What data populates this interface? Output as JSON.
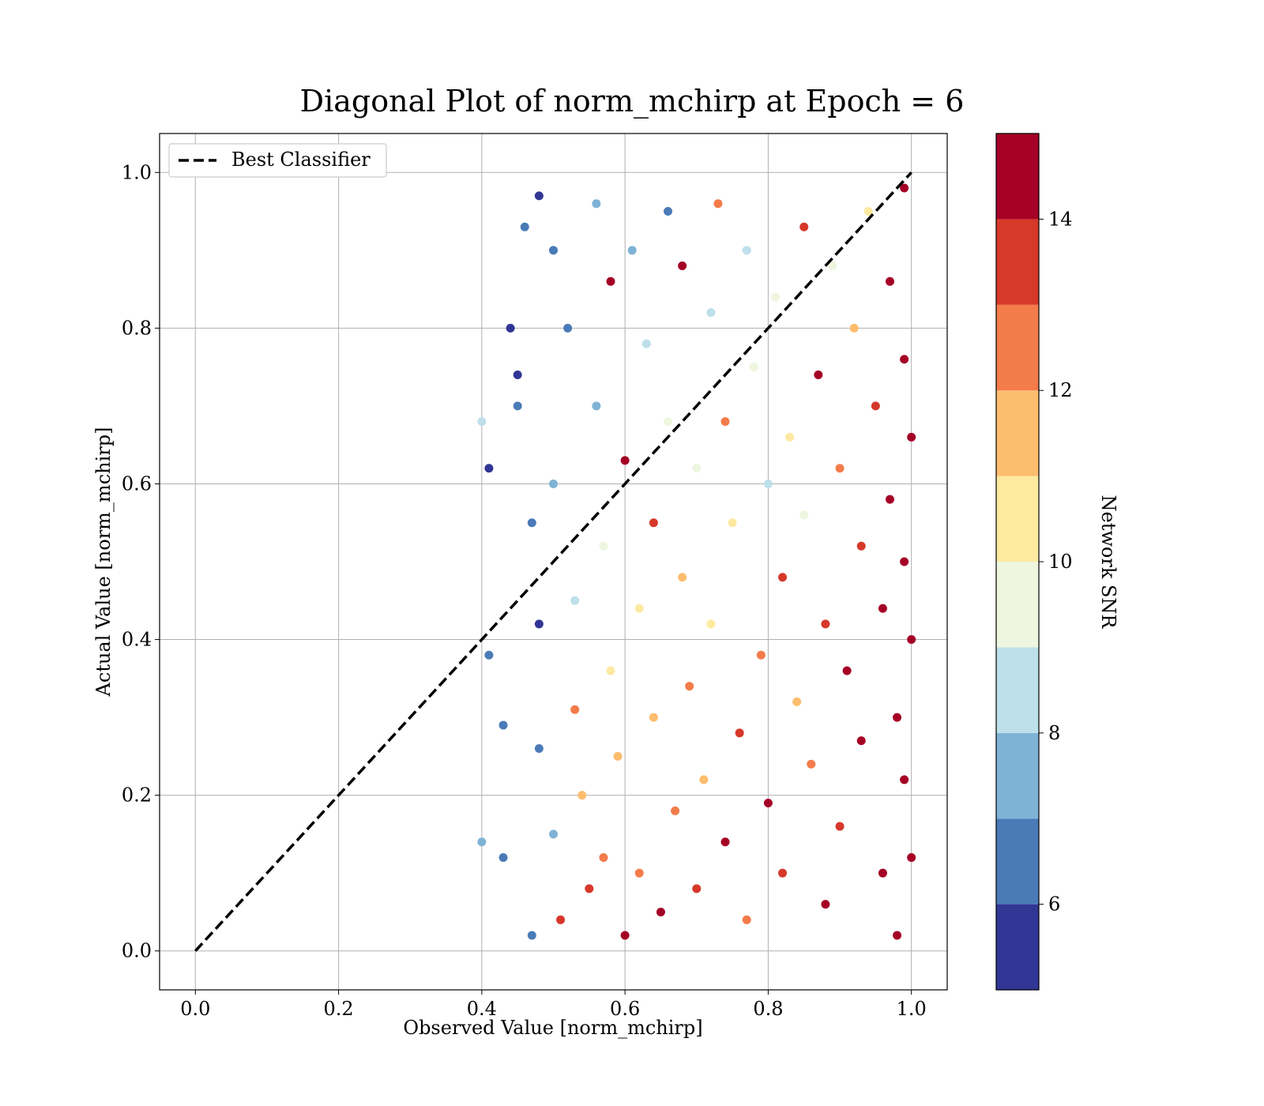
{
  "chart_data": {
    "type": "scatter",
    "title": "Diagonal Plot of norm_mchirp at Epoch = 6",
    "xlabel": "Observed Value [norm_mchirp]",
    "ylabel": "Actual Value [norm_mchirp]",
    "xlim": [
      -0.05,
      1.05
    ],
    "ylim": [
      -0.05,
      1.05
    ],
    "x_ticks": [
      0.0,
      0.2,
      0.4,
      0.6,
      0.8,
      1.0
    ],
    "y_ticks": [
      0.0,
      0.2,
      0.4,
      0.6,
      0.8,
      1.0
    ],
    "x_tick_labels": [
      "0.0",
      "0.2",
      "0.4",
      "0.6",
      "0.8",
      "1.0"
    ],
    "y_tick_labels": [
      "0.0",
      "0.2",
      "0.4",
      "0.6",
      "0.8",
      "1.0"
    ],
    "grid": true,
    "legend": {
      "placement": "upper-left",
      "entries": [
        {
          "label": "Best Classifier",
          "style": "black dashed line"
        }
      ]
    },
    "reference_line": {
      "name": "Best Classifier",
      "x": [
        0.0,
        1.0
      ],
      "y": [
        0.0,
        1.0
      ],
      "color": "#000000",
      "style": "dashed"
    },
    "colorbar": {
      "label": "Network SNR",
      "range": [
        5,
        15
      ],
      "ticks": [
        6,
        8,
        10,
        12,
        14
      ],
      "tick_labels": [
        "6",
        "8",
        "10",
        "12",
        "14"
      ],
      "bins": [
        {
          "from": 5,
          "to": 6,
          "color": "#313695"
        },
        {
          "from": 6,
          "to": 7,
          "color": "#4a7bb7"
        },
        {
          "from": 7,
          "to": 8,
          "color": "#7fb3d5"
        },
        {
          "from": 8,
          "to": 9,
          "color": "#bde0eb"
        },
        {
          "from": 9,
          "to": 10,
          "color": "#eef6df"
        },
        {
          "from": 10,
          "to": 11,
          "color": "#fde9a0"
        },
        {
          "from": 11,
          "to": 12,
          "color": "#fdbd6e"
        },
        {
          "from": 12,
          "to": 13,
          "color": "#f47b4a"
        },
        {
          "from": 13,
          "to": 14,
          "color": "#d6382a"
        },
        {
          "from": 14,
          "to": 15,
          "color": "#a50026"
        }
      ]
    },
    "series": [
      {
        "type": "scatter",
        "color_by": "Network SNR",
        "points": [
          {
            "x": 0.4,
            "y": 0.14,
            "snr": 7
          },
          {
            "x": 0.4,
            "y": 0.68,
            "snr": 8
          },
          {
            "x": 0.41,
            "y": 0.62,
            "snr": 5
          },
          {
            "x": 0.41,
            "y": 0.38,
            "snr": 6
          },
          {
            "x": 0.43,
            "y": 0.29,
            "snr": 6
          },
          {
            "x": 0.43,
            "y": 0.12,
            "snr": 6
          },
          {
            "x": 0.44,
            "y": 0.8,
            "snr": 5
          },
          {
            "x": 0.45,
            "y": 0.74,
            "snr": 5
          },
          {
            "x": 0.45,
            "y": 0.7,
            "snr": 6
          },
          {
            "x": 0.46,
            "y": 0.93,
            "snr": 6
          },
          {
            "x": 0.47,
            "y": 0.55,
            "snr": 6
          },
          {
            "x": 0.47,
            "y": 0.02,
            "snr": 6
          },
          {
            "x": 0.48,
            "y": 0.97,
            "snr": 5
          },
          {
            "x": 0.48,
            "y": 0.42,
            "snr": 5
          },
          {
            "x": 0.48,
            "y": 0.26,
            "snr": 6
          },
          {
            "x": 0.5,
            "y": 0.9,
            "snr": 6
          },
          {
            "x": 0.5,
            "y": 0.6,
            "snr": 7
          },
          {
            "x": 0.5,
            "y": 0.15,
            "snr": 7
          },
          {
            "x": 0.51,
            "y": 0.04,
            "snr": 13
          },
          {
            "x": 0.52,
            "y": 0.8,
            "snr": 6
          },
          {
            "x": 0.53,
            "y": 0.45,
            "snr": 8
          },
          {
            "x": 0.53,
            "y": 0.31,
            "snr": 12
          },
          {
            "x": 0.54,
            "y": 0.2,
            "snr": 11
          },
          {
            "x": 0.55,
            "y": 0.08,
            "snr": 13
          },
          {
            "x": 0.56,
            "y": 0.96,
            "snr": 7
          },
          {
            "x": 0.56,
            "y": 0.7,
            "snr": 7
          },
          {
            "x": 0.57,
            "y": 0.52,
            "snr": 9
          },
          {
            "x": 0.57,
            "y": 0.12,
            "snr": 12
          },
          {
            "x": 0.58,
            "y": 0.86,
            "snr": 14
          },
          {
            "x": 0.58,
            "y": 0.36,
            "snr": 10
          },
          {
            "x": 0.59,
            "y": 0.25,
            "snr": 11
          },
          {
            "x": 0.6,
            "y": 0.63,
            "snr": 14
          },
          {
            "x": 0.6,
            "y": 0.02,
            "snr": 14
          },
          {
            "x": 0.61,
            "y": 0.9,
            "snr": 7
          },
          {
            "x": 0.62,
            "y": 0.44,
            "snr": 10
          },
          {
            "x": 0.62,
            "y": 0.1,
            "snr": 12
          },
          {
            "x": 0.63,
            "y": 0.78,
            "snr": 8
          },
          {
            "x": 0.64,
            "y": 0.55,
            "snr": 13
          },
          {
            "x": 0.64,
            "y": 0.3,
            "snr": 11
          },
          {
            "x": 0.65,
            "y": 0.05,
            "snr": 14
          },
          {
            "x": 0.66,
            "y": 0.95,
            "snr": 6
          },
          {
            "x": 0.66,
            "y": 0.68,
            "snr": 9
          },
          {
            "x": 0.67,
            "y": 0.18,
            "snr": 12
          },
          {
            "x": 0.68,
            "y": 0.48,
            "snr": 11
          },
          {
            "x": 0.68,
            "y": 0.88,
            "snr": 14
          },
          {
            "x": 0.69,
            "y": 0.34,
            "snr": 12
          },
          {
            "x": 0.7,
            "y": 0.62,
            "snr": 9
          },
          {
            "x": 0.7,
            "y": 0.08,
            "snr": 13
          },
          {
            "x": 0.71,
            "y": 0.22,
            "snr": 11
          },
          {
            "x": 0.72,
            "y": 0.82,
            "snr": 8
          },
          {
            "x": 0.72,
            "y": 0.42,
            "snr": 10
          },
          {
            "x": 0.73,
            "y": 0.96,
            "snr": 12
          },
          {
            "x": 0.74,
            "y": 0.68,
            "snr": 12
          },
          {
            "x": 0.74,
            "y": 0.14,
            "snr": 14
          },
          {
            "x": 0.75,
            "y": 0.55,
            "snr": 10
          },
          {
            "x": 0.76,
            "y": 0.28,
            "snr": 13
          },
          {
            "x": 0.77,
            "y": 0.9,
            "snr": 8
          },
          {
            "x": 0.77,
            "y": 0.04,
            "snr": 12
          },
          {
            "x": 0.78,
            "y": 0.75,
            "snr": 9
          },
          {
            "x": 0.79,
            "y": 0.38,
            "snr": 12
          },
          {
            "x": 0.8,
            "y": 0.6,
            "snr": 8
          },
          {
            "x": 0.8,
            "y": 0.19,
            "snr": 14
          },
          {
            "x": 0.81,
            "y": 0.84,
            "snr": 9
          },
          {
            "x": 0.82,
            "y": 0.48,
            "snr": 13
          },
          {
            "x": 0.82,
            "y": 0.1,
            "snr": 13
          },
          {
            "x": 0.83,
            "y": 0.66,
            "snr": 10
          },
          {
            "x": 0.84,
            "y": 0.32,
            "snr": 11
          },
          {
            "x": 0.85,
            "y": 0.93,
            "snr": 13
          },
          {
            "x": 0.85,
            "y": 0.56,
            "snr": 9
          },
          {
            "x": 0.86,
            "y": 0.24,
            "snr": 12
          },
          {
            "x": 0.87,
            "y": 0.74,
            "snr": 14
          },
          {
            "x": 0.88,
            "y": 0.42,
            "snr": 13
          },
          {
            "x": 0.88,
            "y": 0.06,
            "snr": 14
          },
          {
            "x": 0.89,
            "y": 0.88,
            "snr": 9
          },
          {
            "x": 0.9,
            "y": 0.62,
            "snr": 12
          },
          {
            "x": 0.9,
            "y": 0.16,
            "snr": 13
          },
          {
            "x": 0.91,
            "y": 0.36,
            "snr": 14
          },
          {
            "x": 0.92,
            "y": 0.8,
            "snr": 11
          },
          {
            "x": 0.93,
            "y": 0.52,
            "snr": 13
          },
          {
            "x": 0.93,
            "y": 0.27,
            "snr": 14
          },
          {
            "x": 0.94,
            "y": 0.95,
            "snr": 10
          },
          {
            "x": 0.95,
            "y": 0.7,
            "snr": 13
          },
          {
            "x": 0.96,
            "y": 0.44,
            "snr": 14
          },
          {
            "x": 0.96,
            "y": 0.1,
            "snr": 14
          },
          {
            "x": 0.97,
            "y": 0.86,
            "snr": 14
          },
          {
            "x": 0.97,
            "y": 0.58,
            "snr": 14
          },
          {
            "x": 0.98,
            "y": 0.3,
            "snr": 14
          },
          {
            "x": 0.98,
            "y": 0.02,
            "snr": 14
          },
          {
            "x": 0.99,
            "y": 0.98,
            "snr": 14
          },
          {
            "x": 0.99,
            "y": 0.76,
            "snr": 14
          },
          {
            "x": 0.99,
            "y": 0.5,
            "snr": 14
          },
          {
            "x": 0.99,
            "y": 0.22,
            "snr": 14
          },
          {
            "x": 1.0,
            "y": 0.66,
            "snr": 14
          },
          {
            "x": 1.0,
            "y": 0.4,
            "snr": 14
          },
          {
            "x": 1.0,
            "y": 0.12,
            "snr": 14
          }
        ]
      }
    ]
  }
}
